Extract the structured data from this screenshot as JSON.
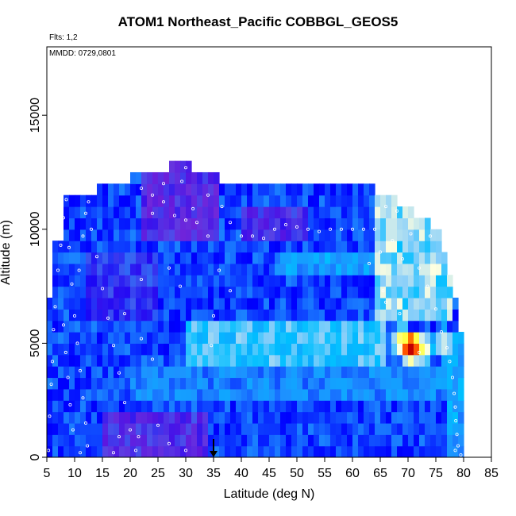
{
  "chart_data": {
    "type": "heatmap",
    "title": "ATOM1 Northeast_Pacific COBBGL_GEOS5",
    "flights_label": "Flts: 1,2",
    "dates_label": "MMDD: 0729,0801",
    "xlabel": "Latitude (deg N)",
    "ylabel": "Altitude (m)",
    "xlim": [
      5,
      85
    ],
    "ylim": [
      0,
      18000
    ],
    "x_ticks": [
      "5",
      "10",
      "15",
      "20",
      "25",
      "30",
      "35",
      "40",
      "45",
      "50",
      "55",
      "60",
      "65",
      "70",
      "75",
      "80",
      "85"
    ],
    "y_ticks": [
      "0",
      "5000",
      "10000",
      "15000"
    ],
    "colorscale": [
      "#00008b",
      "#0000ff",
      "#1e90ff",
      "#00bfff",
      "#87cefa",
      "#ffffe0",
      "#ffff00",
      "#ff0000",
      "#8b0000"
    ],
    "purple_color": "#7a1fd6",
    "column_tops": [
      {
        "lat": 5,
        "top": 7000
      },
      {
        "lat": 6,
        "top": 9500
      },
      {
        "lat": 7,
        "top": 9500
      },
      {
        "lat": 8,
        "top": 11500
      },
      {
        "lat": 14,
        "top": 12000
      },
      {
        "lat": 20,
        "top": 12000
      },
      {
        "lat": 20.5,
        "top": 12500
      },
      {
        "lat": 27,
        "top": 12500
      },
      {
        "lat": 27.5,
        "top": 13000
      },
      {
        "lat": 31.5,
        "top": 13000
      },
      {
        "lat": 31.5,
        "top": 12500
      },
      {
        "lat": 36,
        "top": 12500
      },
      {
        "lat": 36,
        "top": 12000
      },
      {
        "lat": 60,
        "top": 12000
      },
      {
        "lat": 64,
        "top": 11500
      },
      {
        "lat": 67,
        "top": 11500
      },
      {
        "lat": 68,
        "top": 11000
      },
      {
        "lat": 71,
        "top": 10500
      },
      {
        "lat": 74,
        "top": 10000
      },
      {
        "lat": 76,
        "top": 9000
      },
      {
        "lat": 77,
        "top": 8000
      },
      {
        "lat": 78,
        "top": 7000
      },
      {
        "lat": 79,
        "top": 5500
      },
      {
        "lat": 80,
        "top": 5500
      }
    ],
    "features": [
      {
        "kind": "purple",
        "lat_range": [
          22,
          36
        ],
        "alt_range": [
          9500,
          12800
        ],
        "intensity": 0.9
      },
      {
        "kind": "purple",
        "lat_range": [
          40,
          52
        ],
        "alt_range": [
          9600,
          11200
        ],
        "intensity": 0.7
      },
      {
        "kind": "purple",
        "lat_range": [
          15,
          34
        ],
        "alt_range": [
          0,
          1800
        ],
        "intensity": 0.8
      },
      {
        "kind": "purple",
        "lat_range": [
          12,
          25
        ],
        "alt_range": [
          6000,
          9000
        ],
        "intensity": 0.4
      },
      {
        "kind": "blue",
        "lat_range": [
          30,
          66
        ],
        "alt_range": [
          4200,
          6200
        ],
        "value": 0.42
      },
      {
        "kind": "blue",
        "lat_range": [
          46,
          68
        ],
        "alt_range": [
          7800,
          9200
        ],
        "value": 0.3
      },
      {
        "kind": "blue",
        "lat_range": [
          64,
          78
        ],
        "alt_range": [
          6000,
          11500
        ],
        "value": 0.5
      },
      {
        "kind": "blue",
        "lat_range": [
          20,
          79
        ],
        "alt_range": [
          2500,
          4200
        ],
        "value": 0.25
      },
      {
        "kind": "blue",
        "lat_range": [
          77,
          80
        ],
        "alt_range": [
          0,
          5500
        ],
        "value": 0.3
      },
      {
        "kind": "hot",
        "lat": 70.5,
        "alt": 4850,
        "value": 0.95
      },
      {
        "kind": "hot",
        "lat": 69,
        "alt": 5100,
        "value": 0.72
      },
      {
        "kind": "hot",
        "lat": 72.5,
        "alt": 4800,
        "value": 0.7
      },
      {
        "kind": "hot",
        "lat": 67,
        "alt": 10000,
        "value": 0.62
      },
      {
        "kind": "hot",
        "lat": 76.5,
        "alt": 5000,
        "value": 0.6
      },
      {
        "kind": "hot",
        "lat": 73,
        "alt": 8200,
        "value": 0.6
      },
      {
        "kind": "hot",
        "lat": 70,
        "alt": 8000,
        "value": 0.55
      }
    ],
    "flight_points": [
      [
        5.3,
        300
      ],
      [
        5.5,
        1800
      ],
      [
        5.8,
        3200
      ],
      [
        6,
        4200
      ],
      [
        6.2,
        5600
      ],
      [
        6.5,
        6600
      ],
      [
        7,
        8200
      ],
      [
        7.5,
        9300
      ],
      [
        8,
        10500
      ],
      [
        8.5,
        11300
      ],
      [
        9,
        9200
      ],
      [
        9.5,
        7600
      ],
      [
        10,
        6200
      ],
      [
        10.5,
        5000
      ],
      [
        11,
        3800
      ],
      [
        11.5,
        2600
      ],
      [
        12,
        1500
      ],
      [
        12.3,
        500
      ],
      [
        11,
        200
      ],
      [
        9.7,
        1200
      ],
      [
        9.2,
        2300
      ],
      [
        8.8,
        3500
      ],
      [
        8.4,
        4600
      ],
      [
        8,
        5800
      ],
      [
        10.8,
        8200
      ],
      [
        11.5,
        9700
      ],
      [
        12,
        10700
      ],
      [
        12.5,
        11200
      ],
      [
        13,
        10000
      ],
      [
        14,
        8800
      ],
      [
        15,
        7400
      ],
      [
        16,
        6100
      ],
      [
        17,
        4900
      ],
      [
        18,
        3700
      ],
      [
        19,
        2400
      ],
      [
        20,
        1200
      ],
      [
        21,
        300
      ],
      [
        17,
        200
      ],
      [
        18,
        900
      ],
      [
        22,
        11800
      ],
      [
        24,
        11500
      ],
      [
        26,
        11200
      ],
      [
        28,
        10600
      ],
      [
        30,
        10400
      ],
      [
        32,
        10300
      ],
      [
        34,
        9700
      ],
      [
        36,
        8200
      ],
      [
        38,
        7300
      ],
      [
        35,
        6200
      ],
      [
        34.6,
        4900
      ],
      [
        24,
        4300
      ],
      [
        22,
        5200
      ],
      [
        27,
        8300
      ],
      [
        29,
        7500
      ],
      [
        19,
        6300
      ],
      [
        22,
        7800
      ],
      [
        24,
        10700
      ],
      [
        26,
        12000
      ],
      [
        30,
        12700
      ],
      [
        29.3,
        12100
      ],
      [
        31.3,
        10900
      ],
      [
        34,
        11500
      ],
      [
        36.5,
        11000
      ],
      [
        38,
        10300
      ],
      [
        40,
        9700
      ],
      [
        42,
        9700
      ],
      [
        44,
        9600
      ],
      [
        46,
        10000
      ],
      [
        48,
        10200
      ],
      [
        50,
        10100
      ],
      [
        52,
        10000
      ],
      [
        54,
        9900
      ],
      [
        56,
        10000
      ],
      [
        58,
        10000
      ],
      [
        60,
        10000
      ],
      [
        62,
        10000
      ],
      [
        64,
        10000
      ],
      [
        63,
        8500
      ],
      [
        65.5,
        7300
      ],
      [
        65,
        9000
      ],
      [
        67.2,
        9500
      ],
      [
        69,
        8700
      ],
      [
        70.5,
        9800
      ],
      [
        72,
        8300
      ],
      [
        73.5,
        7500
      ],
      [
        75,
        6500
      ],
      [
        76,
        5500
      ],
      [
        77,
        4800
      ],
      [
        77.5,
        4200
      ],
      [
        78,
        3500
      ],
      [
        78.3,
        2800
      ],
      [
        78.5,
        2200
      ],
      [
        78.6,
        1600
      ],
      [
        78.8,
        1000
      ],
      [
        79,
        500
      ],
      [
        78.5,
        300
      ],
      [
        79.5,
        100
      ],
      [
        77.5,
        9500
      ],
      [
        76,
        10300
      ],
      [
        74,
        9700
      ],
      [
        66,
        11000
      ],
      [
        68,
        10800
      ],
      [
        71.5,
        11000
      ],
      [
        66,
        6800
      ],
      [
        68.5,
        6300
      ],
      [
        72,
        4600
      ],
      [
        21.5,
        900
      ],
      [
        25,
        1400
      ],
      [
        27,
        600
      ],
      [
        30,
        300
      ]
    ],
    "arrow": {
      "lat": 35,
      "alt_top": 800,
      "alt_bottom": 0
    }
  }
}
